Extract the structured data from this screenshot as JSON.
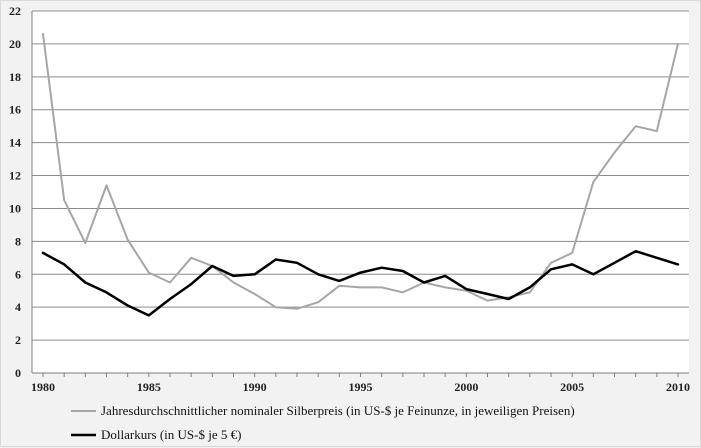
{
  "chart_data": {
    "type": "line",
    "title": "",
    "xlabel": "",
    "ylabel": "",
    "xlim": [
      1980,
      2010
    ],
    "ylim": [
      0,
      22
    ],
    "grid": true,
    "legend_position": "bottom",
    "y_ticks": [
      "0",
      "2",
      "4",
      "6",
      "8",
      "10",
      "12",
      "14",
      "16",
      "18",
      "20",
      "22"
    ],
    "x_ticks": [
      "1980",
      "1985",
      "1990",
      "1995",
      "2000",
      "2005",
      "2010"
    ],
    "x": [
      1980,
      1981,
      1982,
      1983,
      1984,
      1985,
      1986,
      1987,
      1988,
      1989,
      1990,
      1991,
      1992,
      1993,
      1994,
      1995,
      1996,
      1997,
      1998,
      1999,
      2000,
      2001,
      2002,
      2003,
      2004,
      2005,
      2006,
      2007,
      2008,
      2009,
      2010
    ],
    "series": [
      {
        "name": "Jahresdurchschnittlicher nominaler Silberpreis (in US-$ je Feinunze, in jeweiligen Preisen)",
        "color": "#a6a6a6",
        "values": [
          20.6,
          10.5,
          7.9,
          11.4,
          8.1,
          6.1,
          5.5,
          7.0,
          6.5,
          5.5,
          4.8,
          4.0,
          3.9,
          4.3,
          5.3,
          5.2,
          5.2,
          4.9,
          5.5,
          5.2,
          5.0,
          4.4,
          4.6,
          4.9,
          6.7,
          7.3,
          11.6,
          13.4,
          15.0,
          14.7,
          20.0
        ]
      },
      {
        "name": "Dollarkurs  (in US-$ je 5 €)",
        "color": "#000000",
        "values": [
          7.3,
          6.6,
          5.5,
          4.9,
          4.1,
          3.5,
          4.5,
          5.4,
          6.5,
          5.9,
          6.0,
          6.9,
          6.7,
          6.0,
          5.6,
          6.1,
          6.4,
          6.2,
          5.5,
          5.9,
          5.1,
          4.8,
          4.5,
          5.2,
          6.3,
          6.6,
          6.0,
          6.7,
          7.4,
          7.0,
          6.6
        ]
      }
    ]
  }
}
